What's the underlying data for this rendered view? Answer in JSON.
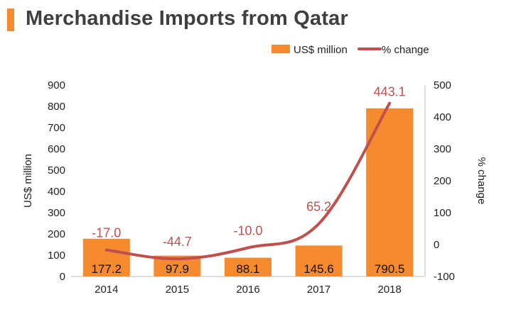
{
  "title": "Merchandise Imports from Qatar",
  "colors": {
    "bar": "#F58A2F",
    "line": "#C0504D",
    "title_bar": "#F58A2F",
    "axis": "#BFBFBF",
    "text": "#3F3F3F"
  },
  "chart_data": {
    "type": "bar",
    "title": "Merchandise Imports from Qatar",
    "categories": [
      "2014",
      "2015",
      "2016",
      "2017",
      "2018"
    ],
    "series": [
      {
        "name": "US$ million",
        "type": "bar",
        "axis": "left",
        "values": [
          177.2,
          97.9,
          88.1,
          145.6,
          790.5
        ]
      },
      {
        "name": "% change",
        "type": "line",
        "axis": "right",
        "values": [
          -17.0,
          -44.7,
          -10.0,
          65.2,
          443.1
        ]
      }
    ],
    "bar_labels": [
      "177.2",
      "97.9",
      "88.1",
      "145.6",
      "790.5"
    ],
    "line_labels": [
      "-17.0",
      "-44.7",
      "-10.0",
      "65.2",
      "443.1"
    ],
    "ylabel": "US$ million",
    "y2label": "% change",
    "ylim": [
      0,
      900
    ],
    "y2lim": [
      -100,
      500
    ],
    "yticks": [
      "0",
      "100",
      "200",
      "300",
      "400",
      "500",
      "600",
      "700",
      "800",
      "900"
    ],
    "y2ticks": [
      "-100",
      "0",
      "100",
      "200",
      "300",
      "400",
      "500"
    ],
    "legend_position": "top-right",
    "grid": false
  }
}
